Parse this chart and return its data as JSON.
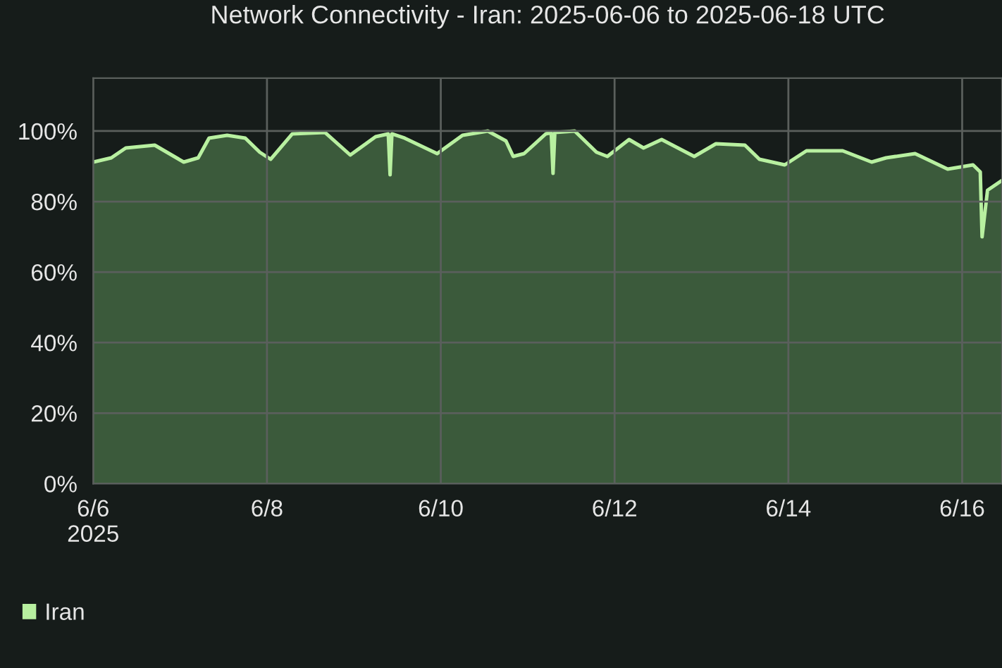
{
  "chart_data": {
    "type": "area",
    "title": "Network Connectivity - Iran: 2025-06-06 to 2025-06-18 UTC",
    "x": [
      "2025-06-06T00:00",
      "2025-06-06T05:00",
      "2025-06-06T09:00",
      "2025-06-06T17:00",
      "2025-06-07T01:00",
      "2025-06-07T05:00",
      "2025-06-07T08:00",
      "2025-06-07T13:00",
      "2025-06-07T18:00",
      "2025-06-07T22:00",
      "2025-06-08T01:00",
      "2025-06-08T07:00",
      "2025-06-08T16:00",
      "2025-06-08T23:00",
      "2025-06-09T06:00",
      "2025-06-09T09:30",
      "2025-06-09T10:00",
      "2025-06-09T10:30",
      "2025-06-09T14:00",
      "2025-06-09T23:00",
      "2025-06-10T06:00",
      "2025-06-10T13:00",
      "2025-06-10T18:00",
      "2025-06-10T20:00",
      "2025-06-10T23:00",
      "2025-06-11T05:00",
      "2025-06-11T06:30",
      "2025-06-11T07:00",
      "2025-06-11T07:30",
      "2025-06-11T13:00",
      "2025-06-11T19:00",
      "2025-06-11T22:00",
      "2025-06-12T04:00",
      "2025-06-12T08:00",
      "2025-06-12T13:00",
      "2025-06-12T22:00",
      "2025-06-13T04:00",
      "2025-06-13T12:00",
      "2025-06-13T16:00",
      "2025-06-13T23:00",
      "2025-06-14T05:00",
      "2025-06-14T15:00",
      "2025-06-14T23:00",
      "2025-06-15T03:00",
      "2025-06-15T11:00",
      "2025-06-15T20:00",
      "2025-06-16T03:00",
      "2025-06-16T05:00",
      "2025-06-16T05:30",
      "2025-06-16T07:00",
      "2025-06-16T11:00"
    ],
    "series": [
      {
        "name": "Iran",
        "color": "#b8f0a0",
        "values": [
          91.2,
          92.4,
          95.2,
          96,
          91.2,
          92.4,
          98,
          98.8,
          98,
          94,
          92,
          99.2,
          99.6,
          93.2,
          98.4,
          99.2,
          87.6,
          99.2,
          98,
          93.6,
          98.8,
          100,
          97.2,
          92.8,
          93.6,
          99.2,
          99.6,
          88,
          99.6,
          100,
          94,
          92.8,
          97.6,
          95.2,
          97.6,
          92.8,
          96.4,
          96,
          92,
          90.4,
          94.4,
          94.4,
          91.2,
          92.4,
          93.6,
          89.2,
          90.4,
          88.4,
          70,
          83.2,
          86
        ]
      }
    ],
    "xlim": [
      "2025-06-06",
      "2025-06-16T11:00"
    ],
    "xticks": [
      {
        "value": "2025-06-06",
        "label": "6/6\n2025"
      },
      {
        "value": "2025-06-08",
        "label": "6/8"
      },
      {
        "value": "2025-06-10",
        "label": "6/10"
      },
      {
        "value": "2025-06-12",
        "label": "6/12"
      },
      {
        "value": "2025-06-14",
        "label": "6/14"
      },
      {
        "value": "2025-06-16",
        "label": "6/16"
      }
    ],
    "ylim": [
      0,
      115
    ],
    "yticks": [
      {
        "value": 0,
        "label": "0%"
      },
      {
        "value": 20,
        "label": "20%"
      },
      {
        "value": 40,
        "label": "40%"
      },
      {
        "value": 60,
        "label": "60%"
      },
      {
        "value": 80,
        "label": "80%"
      },
      {
        "value": 100,
        "label": "100%"
      }
    ],
    "grid": true,
    "legend": "bottom"
  }
}
